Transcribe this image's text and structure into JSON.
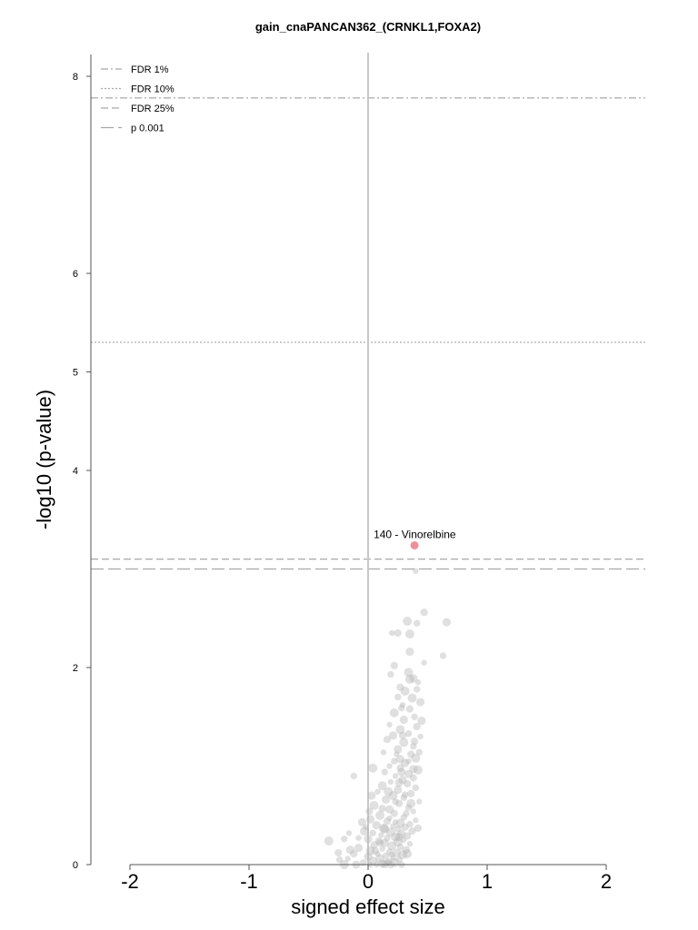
{
  "chart_data": {
    "type": "scatter",
    "title": "gain_cnaPANCAN362_(CRNKL1,FOXA2)",
    "xlabel": "signed effect size",
    "ylabel": "-log10 (p-value)",
    "xlim": [
      -2.35,
      2.35
    ],
    "ylim": [
      0,
      8.25
    ],
    "xticks": [
      -2,
      -1,
      0,
      1,
      2
    ],
    "yticks": [
      0,
      2,
      4,
      5,
      6,
      8
    ],
    "legend": {
      "placement": "top-left",
      "entries": [
        {
          "label": "FDR 1%",
          "style": "dashdot"
        },
        {
          "label": "FDR 10%",
          "style": "dotted"
        },
        {
          "label": "FDR 25%",
          "style": "dashed"
        },
        {
          "label": "p 0.001",
          "style": "longdash"
        }
      ]
    },
    "thresholds": [
      {
        "label": "FDR 1%",
        "y": 7.78,
        "style": "dashdot"
      },
      {
        "label": "FDR 10%",
        "y": 5.3,
        "style": "dotted"
      },
      {
        "label": "FDR 25%",
        "y": 3.1,
        "style": "dashed"
      },
      {
        "label": "p 0.001",
        "y": 3.0,
        "style": "longdash"
      }
    ],
    "highlight": {
      "x": 0.39,
      "y": 3.24,
      "label": "140 - Vinorelbine",
      "color": "#e8868f"
    },
    "colors": {
      "background_points": "#b4b4b4",
      "zero_line": "#c8c8c8",
      "threshold_lines": "#a8a8a8"
    },
    "series": [
      {
        "points": [
          [
            0.4,
            2.98
          ],
          [
            0.47,
            2.56
          ],
          [
            0.33,
            2.47
          ],
          [
            0.41,
            2.45
          ],
          [
            0.66,
            2.46
          ],
          [
            0.2,
            2.35
          ],
          [
            0.25,
            2.35
          ],
          [
            0.35,
            2.34
          ],
          [
            0.63,
            2.12
          ],
          [
            0.35,
            2.16
          ],
          [
            0.47,
            2.05
          ],
          [
            0.22,
            2.02
          ],
          [
            0.34,
            1.95
          ],
          [
            0.19,
            1.93
          ],
          [
            0.38,
            1.89
          ],
          [
            0.42,
            1.85
          ],
          [
            0.27,
            1.8
          ],
          [
            0.31,
            1.76
          ],
          [
            0.25,
            1.7
          ],
          [
            0.44,
            1.65
          ],
          [
            0.29,
            1.62
          ],
          [
            0.35,
            1.58
          ],
          [
            0.22,
            1.54
          ],
          [
            0.39,
            1.5
          ],
          [
            0.3,
            1.47
          ],
          [
            0.18,
            1.42
          ],
          [
            0.41,
            1.4
          ],
          [
            0.27,
            1.37
          ],
          [
            0.34,
            1.33
          ],
          [
            0.21,
            1.31
          ],
          [
            0.44,
            1.3
          ],
          [
            0.16,
            1.27
          ],
          [
            0.3,
            1.24
          ],
          [
            0.38,
            1.2
          ],
          [
            0.25,
            1.17
          ],
          [
            0.13,
            1.14
          ],
          [
            0.36,
            1.12
          ],
          [
            0.4,
            1.08
          ],
          [
            0.22,
            1.05
          ],
          [
            0.31,
            1.03
          ],
          [
            0.18,
            1.0
          ],
          [
            0.27,
            0.98
          ],
          [
            0.42,
            0.96
          ],
          [
            0.14,
            0.94
          ],
          [
            0.34,
            0.92
          ],
          [
            0.23,
            0.9
          ],
          [
            0.38,
            0.88
          ],
          [
            0.04,
            0.98
          ],
          [
            -0.12,
            0.9
          ],
          [
            0.29,
            0.86
          ],
          [
            0.19,
            0.84
          ],
          [
            0.33,
            0.82
          ],
          [
            0.12,
            0.8
          ],
          [
            0.4,
            0.78
          ],
          [
            0.25,
            0.76
          ],
          [
            0.08,
            0.74
          ],
          [
            0.36,
            0.72
          ],
          [
            0.21,
            0.7
          ],
          [
            0.3,
            0.68
          ],
          [
            0.15,
            0.66
          ],
          [
            0.43,
            0.64
          ],
          [
            0.26,
            0.62
          ],
          [
            0.05,
            0.6
          ],
          [
            0.34,
            0.58
          ],
          [
            0.18,
            0.56
          ],
          [
            0.38,
            0.54
          ],
          [
            0.22,
            0.52
          ],
          [
            0.1,
            0.5
          ],
          [
            0.3,
            0.48
          ],
          [
            0.02,
            0.46
          ],
          [
            0.4,
            0.45
          ],
          [
            0.16,
            0.44
          ],
          [
            0.27,
            0.42
          ],
          [
            0.35,
            0.41
          ],
          [
            0.07,
            0.4
          ],
          [
            0.21,
            0.39
          ],
          [
            0.31,
            0.38
          ],
          [
            0.13,
            0.37
          ],
          [
            0.25,
            0.36
          ],
          [
            -0.05,
            0.43
          ],
          [
            -0.02,
            0.38
          ],
          [
            0.37,
            0.34
          ],
          [
            0.19,
            0.33
          ],
          [
            0.04,
            0.32
          ],
          [
            0.28,
            0.31
          ],
          [
            0.11,
            0.3
          ],
          [
            0.33,
            0.29
          ],
          [
            0.23,
            0.28
          ],
          [
            0.16,
            0.27
          ],
          [
            0.0,
            0.26
          ],
          [
            0.3,
            0.25
          ],
          [
            0.09,
            0.24
          ],
          [
            0.25,
            0.23
          ],
          [
            -0.2,
            0.26
          ],
          [
            0.14,
            0.22
          ],
          [
            0.35,
            0.21
          ],
          [
            0.05,
            0.2
          ],
          [
            0.2,
            0.19
          ],
          [
            0.27,
            0.18
          ],
          [
            -0.08,
            0.17
          ],
          [
            0.12,
            0.16
          ],
          [
            0.32,
            0.15
          ],
          [
            0.02,
            0.14
          ],
          [
            0.18,
            0.13
          ],
          [
            0.24,
            0.12
          ],
          [
            0.08,
            0.11
          ],
          [
            -0.12,
            0.11
          ],
          [
            0.29,
            0.1
          ],
          [
            0.15,
            0.09
          ],
          [
            0.0,
            0.08
          ],
          [
            0.21,
            0.07
          ],
          [
            -0.25,
            0.12
          ],
          [
            0.1,
            0.06
          ],
          [
            0.26,
            0.05
          ],
          [
            0.04,
            0.04
          ],
          [
            -0.17,
            0.06
          ],
          [
            0.17,
            0.03
          ],
          [
            0.22,
            0.02
          ],
          [
            -0.04,
            0.02
          ],
          [
            0.12,
            0.01
          ],
          [
            0.07,
            0.0
          ],
          [
            0.19,
            0.0
          ],
          [
            -0.2,
            0.0
          ],
          [
            0.28,
            0.0
          ],
          [
            -0.1,
            0.0
          ],
          [
            0.02,
            0.0
          ],
          [
            0.14,
            0.0
          ],
          [
            -0.33,
            0.24
          ],
          [
            -0.24,
            0.05
          ],
          [
            -0.15,
            0.15
          ],
          [
            -0.08,
            0.27
          ],
          [
            0.01,
            0.54
          ],
          [
            -0.03,
            0.34
          ],
          [
            0.23,
            0.64
          ],
          [
            0.28,
            0.94
          ],
          [
            0.34,
            1.05
          ],
          [
            0.39,
            1.25
          ],
          [
            0.17,
            0.74
          ],
          [
            0.32,
            0.52
          ],
          [
            0.26,
            0.28
          ],
          [
            0.2,
            0.1
          ],
          [
            0.1,
            0.22
          ],
          [
            0.36,
            0.62
          ],
          [
            0.43,
            1.14
          ],
          [
            0.45,
            1.46
          ],
          [
            0.24,
            1.12
          ],
          [
            0.29,
            1.31
          ],
          [
            0.37,
            1.69
          ],
          [
            0.41,
            1.78
          ],
          [
            0.27,
            1.07
          ],
          [
            0.18,
            0.47
          ],
          [
            0.06,
            0.14
          ],
          [
            0.14,
            0.36
          ],
          [
            0.31,
            0.71
          ],
          [
            0.38,
            0.97
          ],
          [
            0.23,
            0.43
          ],
          [
            0.12,
            0.57
          ],
          [
            0.33,
            0.11
          ],
          [
            0.16,
            0.02
          ],
          [
            0.26,
            0.83
          ],
          [
            -0.16,
            0.32
          ],
          [
            0.42,
            0.37
          ],
          [
            0.35,
            1.88
          ],
          [
            0.28,
            1.59
          ],
          [
            0.03,
            0.7
          ]
        ]
      }
    ]
  }
}
